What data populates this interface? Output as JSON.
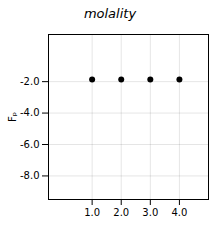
{
  "chart_data": {
    "type": "scatter",
    "title": "molality",
    "ylabel": "Fₚ",
    "x": [
      1.0,
      2.0,
      3.0,
      4.0
    ],
    "values": [
      -1.86,
      -1.86,
      -1.86,
      -1.86
    ],
    "color": "#000000",
    "xlim": [
      -0.5,
      5.0
    ],
    "ylim": [
      -9.5,
      1.0
    ],
    "xticks": [
      {
        "value": 1.0,
        "label": "1.0"
      },
      {
        "value": 2.0,
        "label": "2.0"
      },
      {
        "value": 3.0,
        "label": "3.0"
      },
      {
        "value": 4.0,
        "label": "4.0"
      }
    ],
    "yticks": [
      {
        "value": -2.0,
        "label": "-2.0"
      },
      {
        "value": -4.0,
        "label": "-4.0"
      },
      {
        "value": -6.0,
        "label": "-6.0"
      },
      {
        "value": -8.0,
        "label": "-8.0"
      }
    ],
    "grid": true
  }
}
